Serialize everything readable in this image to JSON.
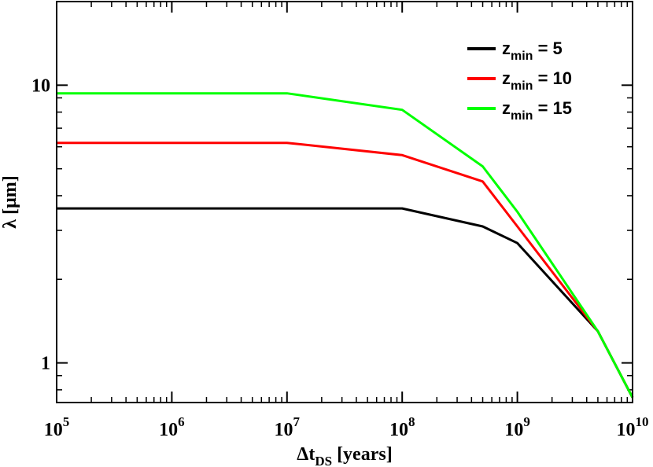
{
  "chart_data": {
    "type": "line",
    "x_scale": "log",
    "y_scale": "log",
    "xlim": [
      100000,
      10000000000
    ],
    "ylim": [
      0.72,
      20
    ],
    "x_ticks": [
      {
        "value": 100000,
        "base": "10",
        "exp": "5"
      },
      {
        "value": 1000000,
        "base": "10",
        "exp": "6"
      },
      {
        "value": 10000000,
        "base": "10",
        "exp": "7"
      },
      {
        "value": 100000000,
        "base": "10",
        "exp": "8"
      },
      {
        "value": 1000000000,
        "base": "10",
        "exp": "9"
      },
      {
        "value": 10000000000,
        "base": "10",
        "exp": "10"
      }
    ],
    "y_ticks": [
      {
        "value": 1,
        "label": "1"
      },
      {
        "value": 10,
        "label": "10"
      }
    ],
    "xlabel": {
      "main": "Δt",
      "sub": "DS",
      "rest": " [years]"
    },
    "ylabel": "λ [μm]",
    "legend_position": "top-right",
    "grid": false,
    "series": [
      {
        "name": {
          "main": "z",
          "sub": "min",
          "rest": " = 5"
        },
        "color": "#000000",
        "x": [
          100000,
          10000000,
          100000000,
          500000000,
          1000000000,
          5000000000,
          10000000000
        ],
        "y": [
          3.6,
          3.6,
          3.6,
          3.1,
          2.7,
          1.3,
          0.75
        ]
      },
      {
        "name": {
          "main": "z",
          "sub": "min",
          "rest": " = 10"
        },
        "color": "#ff0000",
        "x": [
          100000,
          10000000,
          100000000,
          500000000,
          1000000000,
          5000000000,
          10000000000
        ],
        "y": [
          6.2,
          6.2,
          5.6,
          4.5,
          3.1,
          1.3,
          0.75
        ]
      },
      {
        "name": {
          "main": "z",
          "sub": "min",
          "rest": " = 15"
        },
        "color": "#00ff00",
        "x": [
          100000,
          10000000,
          100000000,
          500000000,
          1000000000,
          5000000000,
          10000000000
        ],
        "y": [
          9.35,
          9.35,
          8.15,
          5.1,
          3.5,
          1.3,
          0.75
        ]
      }
    ]
  }
}
